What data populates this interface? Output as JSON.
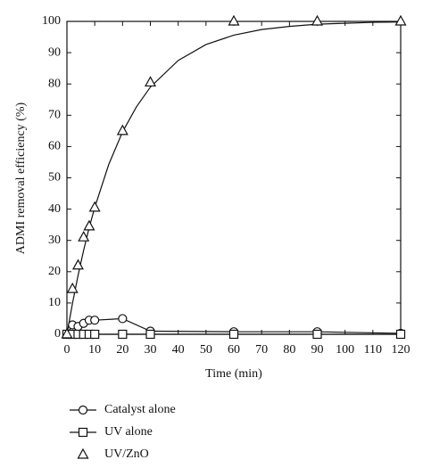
{
  "chart_data": {
    "type": "scatter",
    "xlabel": "Time (min)",
    "ylabel": "ADMI removal efficiency (%)",
    "xlim": [
      0,
      120
    ],
    "ylim": [
      0,
      100
    ],
    "xticks": [
      0,
      10,
      20,
      30,
      40,
      50,
      60,
      70,
      80,
      90,
      100,
      110,
      120
    ],
    "yticks": [
      0,
      10,
      20,
      30,
      40,
      50,
      60,
      70,
      80,
      90,
      100
    ],
    "series": [
      {
        "name": "Catalyst alone",
        "marker": "circle",
        "color": "#111111",
        "line": true,
        "x": [
          0,
          2,
          4,
          6,
          8,
          10,
          20,
          30,
          60,
          90,
          120
        ],
        "values": [
          0,
          3,
          2.5,
          3.5,
          4.5,
          4.5,
          5,
          1,
          0.8,
          0.8,
          0.3
        ]
      },
      {
        "name": "UV alone",
        "marker": "square",
        "color": "#111111",
        "line": true,
        "x": [
          0,
          2,
          4,
          6,
          8,
          10,
          20,
          30,
          60,
          90,
          120
        ],
        "values": [
          0,
          0,
          0,
          0,
          0,
          0,
          0,
          0,
          0,
          0,
          0
        ]
      },
      {
        "name": "UV/ZnO",
        "marker": "triangle",
        "color": "#111111",
        "line": false,
        "x": [
          0,
          2,
          4,
          6,
          8,
          10,
          20,
          30,
          60,
          90,
          120
        ],
        "values": [
          0,
          14.5,
          22,
          31,
          34.5,
          40.5,
          65,
          80.5,
          100,
          100,
          100
        ]
      }
    ],
    "fit": {
      "color": "#111111",
      "x": [
        0,
        2,
        4,
        6,
        8,
        10,
        15,
        20,
        25,
        30,
        40,
        50,
        60,
        70,
        80,
        90,
        100,
        110,
        120
      ],
      "values": [
        0,
        9.9,
        18.8,
        26.8,
        34.1,
        40.5,
        54.2,
        64.7,
        72.7,
        79.0,
        87.5,
        92.6,
        95.6,
        97.4,
        98.4,
        99.1,
        99.4,
        99.7,
        99.8
      ]
    }
  }
}
